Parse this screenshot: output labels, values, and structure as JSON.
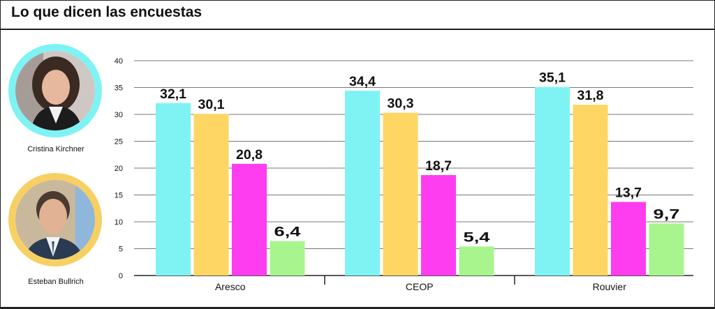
{
  "title": "Lo que dicen las encuestas",
  "candidates": [
    {
      "name": "Cristina Kirchner",
      "color": "#7ff3f3",
      "icon": "portrait-photo"
    },
    {
      "name": "Esteban Bullrich",
      "color": "#f7d064",
      "icon": "portrait-photo"
    }
  ],
  "chart_data": {
    "type": "bar",
    "categories": [
      "Aresco",
      "CEOP",
      "Rouvier"
    ],
    "series": [
      {
        "color": "#7ff3f3",
        "values": [
          32.1,
          34.4,
          35.1
        ]
      },
      {
        "color": "#fdd664",
        "values": [
          30.1,
          30.3,
          31.8
        ]
      },
      {
        "color": "#ff3df0",
        "values": [
          20.8,
          18.7,
          13.7
        ]
      },
      {
        "color": "#a8f58d",
        "values": [
          6.4,
          5.4,
          9.7
        ]
      }
    ],
    "data_labels": [
      [
        "32,1",
        "30,1",
        "20,8",
        "6,4"
      ],
      [
        "34,4",
        "30,3",
        "18,7",
        "5,4"
      ],
      [
        "35,1",
        "31,8",
        "13,7",
        "9,7"
      ]
    ],
    "ylim": [
      0,
      40
    ],
    "yticks": [
      0,
      5,
      10,
      15,
      20,
      25,
      30,
      35,
      40
    ],
    "grid": true,
    "xlabel": "",
    "ylabel": ""
  }
}
